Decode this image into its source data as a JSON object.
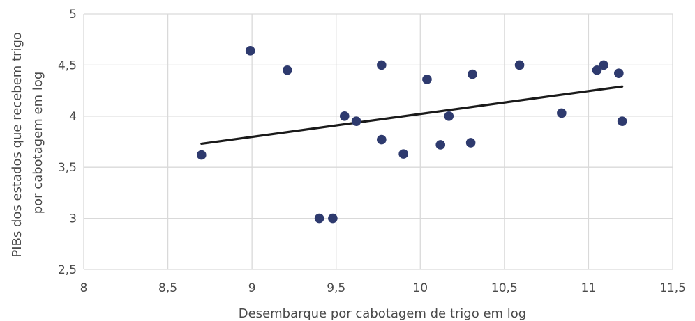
{
  "chart_data": {
    "type": "scatter",
    "title": "",
    "xlabel": "Desembarque por cabotagem de trigo em log",
    "ylabel_lines": [
      "PIBs dos estados que recebem trigo",
      "por cabotagem em log"
    ],
    "xlim": [
      8,
      11.5
    ],
    "ylim": [
      2.5,
      5
    ],
    "xticks": [
      8,
      8.5,
      9,
      9.5,
      10,
      10.5,
      11,
      11.5
    ],
    "yticks": [
      2.5,
      3,
      3.5,
      4,
      4.5,
      5
    ],
    "xtick_labels": [
      "8",
      "8,5",
      "9",
      "9,5",
      "10",
      "10,5",
      "11",
      "11,5"
    ],
    "ytick_labels": [
      "2,5",
      "3",
      "3,5",
      "4",
      "4,5",
      "5"
    ],
    "grid": true,
    "legend": "none",
    "series": [
      {
        "x": [
          8.7,
          8.99,
          9.21,
          9.4,
          9.48,
          9.55,
          9.62,
          9.77,
          9.77,
          9.9,
          10.04,
          10.12,
          10.17,
          10.3,
          10.31,
          10.59,
          10.84,
          11.05,
          11.09,
          11.18,
          11.2
        ],
        "y": [
          3.62,
          4.64,
          4.45,
          3.0,
          3.0,
          4.0,
          3.95,
          4.5,
          3.77,
          3.63,
          4.36,
          3.72,
          4.0,
          3.74,
          4.41,
          4.5,
          4.03,
          4.45,
          4.5,
          4.42,
          3.95
        ],
        "color": "#2e3a6e"
      }
    ],
    "trendline": {
      "x": [
        8.7,
        11.2
      ],
      "y": [
        3.73,
        4.29
      ],
      "color": "#1a1a1a"
    },
    "colors": {
      "grid": "#d9d9d9",
      "text": "#4a4a4a"
    }
  }
}
